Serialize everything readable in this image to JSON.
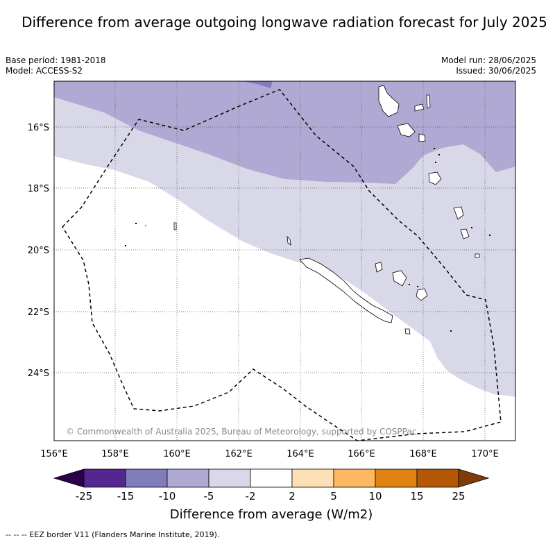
{
  "title": "Difference from average outgoing longwave radiation forecast for July 2025",
  "meta_left": {
    "base_period": "Base period: 1981-2018",
    "model": "Model: ACCESS-S2"
  },
  "meta_right": {
    "model_run": "Model run: 28/06/2025",
    "issued": "Issued: 30/06/2025"
  },
  "map": {
    "x_ticks": [
      "156°E",
      "158°E",
      "160°E",
      "162°E",
      "164°E",
      "166°E",
      "168°E",
      "170°E"
    ],
    "y_ticks": [
      "16°S",
      "18°S",
      "20°S",
      "22°S",
      "24°S"
    ],
    "copyright": "© Commonwealth of Australia 2025, Bureau of Meteorology, supported by COSPPac",
    "colors": {
      "lt_neg_15": "#2d004b",
      "-15_-10": "#807dba",
      "-10_-5": "#b0a9d3",
      "-5_-2": "#d8d8e8",
      "-2_2": "#ffffff"
    }
  },
  "colorbar": {
    "ticks": [
      "-25",
      "-15",
      "-10",
      "-5",
      "-2",
      "2",
      "5",
      "10",
      "15",
      "25"
    ],
    "colors": [
      "#2d004b",
      "#54278f",
      "#807dba",
      "#b0a9d3",
      "#d8d8e8",
      "#ffffff",
      "#fee0b6",
      "#fdb863",
      "#e08214",
      "#b35806",
      "#7f3b08"
    ],
    "label": "Difference from average (W/m2)"
  },
  "footer": {
    "legend": "--  --  -- EEZ border V11 (Flanders Marine Institute, 2019)."
  }
}
